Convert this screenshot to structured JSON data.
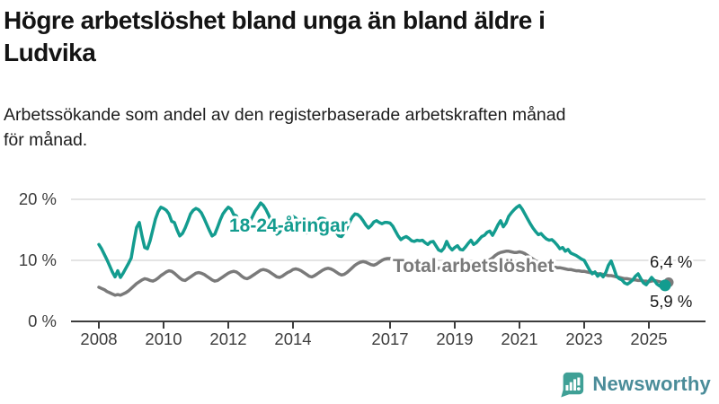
{
  "header": {
    "title_lines": [
      "Högre arbetslöshet bland unga än bland äldre i",
      "Ludvika"
    ],
    "subtitle_lines": [
      "Arbetssökande som andel av den registerbaserade arbetskraften månad",
      "för månad."
    ]
  },
  "chart_data": {
    "type": "line",
    "title": "Högre arbetslöshet bland unga än bland äldre i Ludvika",
    "subtitle": "Arbetssökande som andel av den registerbaserade arbetskraften månad för månad.",
    "x_unit": "month",
    "x_range_years": [
      2008.0,
      2025.5
    ],
    "x_ticks": [
      {
        "year": 2008,
        "label": "2008"
      },
      {
        "year": 2010,
        "label": "2010"
      },
      {
        "year": 2012,
        "label": "2012"
      },
      {
        "year": 2014,
        "label": "2014"
      },
      {
        "year": 2017,
        "label": "2017"
      },
      {
        "year": 2019,
        "label": "2019"
      },
      {
        "year": 2021,
        "label": "2021"
      },
      {
        "year": 2023,
        "label": "2023"
      },
      {
        "year": 2025,
        "label": "2025"
      }
    ],
    "y_ticks": [
      {
        "value": 0,
        "label": "0 %"
      },
      {
        "value": 10,
        "label": "10 %"
      },
      {
        "value": 20,
        "label": "20 %"
      }
    ],
    "ylim": [
      0,
      21.5
    ],
    "grid": "horizontal-light",
    "legend": "inline-labels",
    "series": [
      {
        "name": "Total arbetslöshet",
        "color": "#7a7a7a",
        "end_label": "6,4 %",
        "end_value": 6.4,
        "start_year": 2008,
        "values": [
          5.6,
          5.4,
          5.2,
          4.9,
          4.7,
          4.5,
          4.3,
          4.4,
          4.3,
          4.5,
          4.7,
          5.0,
          5.4,
          5.8,
          6.2,
          6.5,
          6.8,
          7.0,
          6.9,
          6.7,
          6.6,
          6.8,
          7.1,
          7.5,
          7.8,
          8.1,
          8.3,
          8.2,
          7.9,
          7.5,
          7.1,
          6.8,
          6.7,
          7.0,
          7.3,
          7.6,
          7.9,
          8.0,
          7.9,
          7.7,
          7.4,
          7.1,
          6.8,
          6.6,
          6.7,
          7.0,
          7.3,
          7.6,
          7.9,
          8.1,
          8.2,
          8.1,
          7.8,
          7.4,
          7.1,
          7.0,
          7.2,
          7.5,
          7.8,
          8.1,
          8.4,
          8.5,
          8.4,
          8.2,
          7.9,
          7.6,
          7.3,
          7.2,
          7.4,
          7.7,
          8.0,
          8.2,
          8.5,
          8.6,
          8.5,
          8.3,
          8.0,
          7.7,
          7.4,
          7.3,
          7.5,
          7.8,
          8.1,
          8.4,
          8.6,
          8.7,
          8.6,
          8.4,
          8.1,
          7.8,
          7.6,
          7.7,
          8.0,
          8.4,
          8.8,
          9.2,
          9.5,
          9.7,
          9.8,
          9.7,
          9.5,
          9.3,
          9.2,
          9.4,
          9.7,
          10.0,
          10.2,
          10.3,
          10.3,
          10.2,
          10.1,
          9.9,
          9.7,
          9.5,
          9.3,
          9.4,
          9.5,
          9.6,
          9.7,
          9.7,
          9.6,
          9.4,
          9.2,
          9.0,
          8.9,
          8.8,
          8.7,
          8.8,
          8.9,
          9.0,
          9.1,
          9.1,
          9.2,
          9.1,
          9.0,
          9.0,
          8.9,
          9.0,
          9.1,
          9.2,
          9.3,
          9.4,
          9.5,
          9.7,
          9.9,
          10.1,
          10.4,
          10.8,
          11.1,
          11.3,
          11.4,
          11.5,
          11.5,
          11.4,
          11.3,
          11.3,
          11.4,
          11.3,
          11.1,
          10.8,
          10.5,
          10.2,
          9.9,
          9.7,
          9.5,
          9.4,
          9.2,
          9.1,
          9.0,
          8.9,
          8.8,
          8.8,
          8.7,
          8.6,
          8.5,
          8.5,
          8.4,
          8.3,
          8.3,
          8.2,
          8.2,
          8.1,
          8.0,
          8.0,
          7.9,
          7.8,
          7.8,
          7.7,
          7.6,
          7.5,
          7.5,
          7.4,
          7.3,
          7.2,
          7.1,
          7.0,
          7.0,
          6.9,
          6.8,
          6.8,
          6.7,
          6.7,
          6.6,
          6.6,
          6.5,
          6.6,
          6.7,
          6.6,
          6.5,
          6.4,
          6.4
        ]
      },
      {
        "name": "18-24-åringar",
        "color": "#139c8f",
        "end_label": "5,9 %",
        "end_value": 5.9,
        "start_year": 2008,
        "values": [
          12.6,
          11.9,
          11.0,
          10.1,
          9.1,
          8.1,
          7.3,
          8.3,
          7.2,
          7.9,
          8.7,
          9.5,
          10.4,
          13.0,
          15.4,
          16.2,
          14.0,
          12.1,
          11.9,
          13.2,
          15.0,
          16.8,
          18.0,
          18.7,
          18.5,
          18.2,
          17.6,
          16.4,
          16.2,
          15.0,
          14.0,
          14.4,
          15.3,
          16.4,
          17.6,
          18.2,
          18.5,
          18.3,
          17.8,
          16.9,
          15.9,
          14.9,
          14.0,
          14.3,
          15.4,
          16.6,
          17.6,
          18.2,
          18.7,
          18.4,
          17.5,
          17.3,
          16.0,
          14.7,
          14.6,
          15.3,
          16.3,
          17.2,
          18.1,
          18.7,
          19.4,
          19.0,
          18.3,
          17.4,
          16.3,
          15.2,
          14.3,
          14.6,
          15.4,
          16.2,
          16.9,
          17.2,
          17.2,
          16.9,
          16.4,
          15.7,
          15.0,
          14.5,
          14.6,
          15.1,
          15.8,
          16.4,
          16.9,
          16.9,
          16.7,
          16.3,
          15.8,
          15.2,
          14.6,
          14.0,
          13.9,
          14.5,
          15.3,
          16.3,
          17.1,
          17.6,
          17.5,
          17.1,
          16.5,
          15.8,
          15.3,
          15.7,
          16.3,
          16.5,
          16.2,
          16.0,
          16.2,
          16.2,
          16.1,
          15.6,
          14.8,
          14.0,
          13.4,
          13.7,
          13.9,
          13.6,
          13.2,
          13.1,
          13.3,
          13.2,
          13.3,
          12.9,
          12.6,
          13.0,
          13.1,
          12.4,
          11.7,
          11.5,
          12.0,
          13.1,
          12.2,
          11.7,
          12.1,
          12.4,
          11.8,
          11.7,
          12.2,
          12.8,
          13.3,
          12.6,
          12.9,
          13.4,
          13.9,
          14.1,
          14.6,
          14.8,
          14.1,
          14.9,
          15.8,
          16.5,
          15.5,
          16.1,
          17.2,
          17.8,
          18.3,
          18.7,
          19.0,
          18.4,
          17.6,
          16.8,
          16.0,
          15.3,
          14.7,
          14.2,
          14.4,
          13.9,
          13.5,
          13.3,
          13.4,
          13.0,
          12.5,
          11.9,
          12.1,
          11.5,
          11.8,
          11.2,
          11.0,
          10.8,
          10.5,
          10.2,
          10.0,
          9.2,
          8.4,
          7.8,
          8.1,
          7.4,
          7.8,
          7.3,
          8.0,
          9.2,
          9.9,
          8.7,
          7.4,
          7.0,
          6.8,
          6.3,
          6.1,
          6.4,
          6.8,
          7.4,
          7.8,
          7.0,
          6.3,
          6.0,
          6.6,
          7.2,
          6.7,
          6.1,
          5.8,
          6.3,
          5.9
        ]
      }
    ]
  },
  "footer": {
    "brand": "Newsworthy",
    "brand_icon": "newsworthy-speech-bubble-bar-chart-icon",
    "brand_color_icon": "#3fa096",
    "brand_color_text": "#4a8c99"
  }
}
